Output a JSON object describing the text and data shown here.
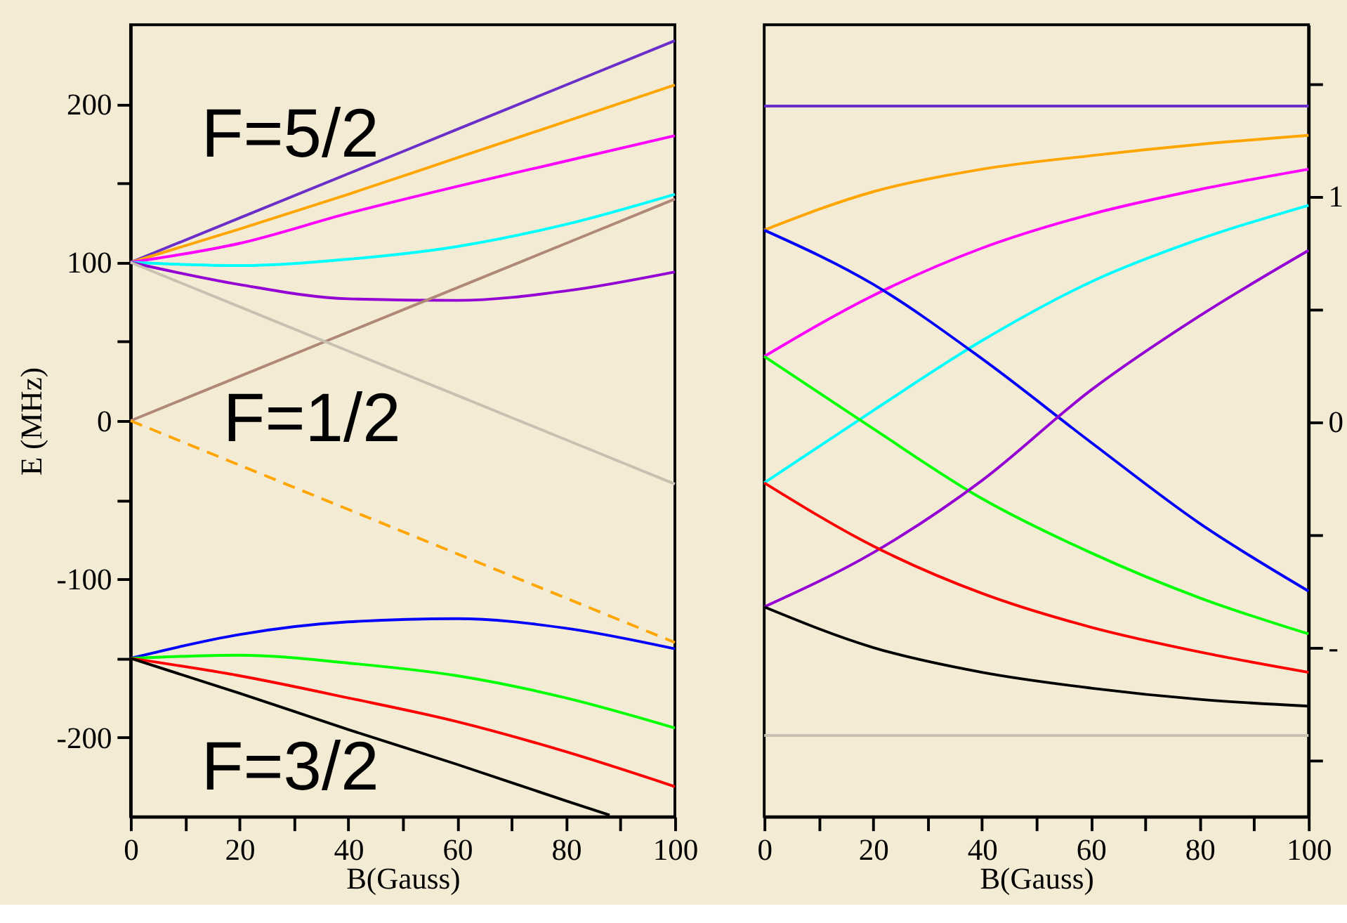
{
  "chart_data": [
    {
      "type": "line",
      "xlabel": "B(Gauss)",
      "ylabel": "E  (MHz)",
      "xlim": [
        0,
        100
      ],
      "ylim": [
        -250,
        250
      ],
      "xticks": [
        0,
        {
          "value": 10,
          "label": null
        },
        20,
        {
          "value": 30,
          "label": null
        },
        40,
        {
          "value": 50,
          "label": null
        },
        60,
        {
          "value": 70,
          "label": null
        },
        80,
        {
          "value": 90,
          "label": null
        },
        100
      ],
      "yticks": [
        -200,
        {
          "value": -150,
          "label": null
        },
        -100,
        {
          "value": -50,
          "label": null
        },
        0,
        {
          "value": 50,
          "label": null
        },
        100,
        {
          "value": 150,
          "label": null
        },
        200
      ],
      "grid": false,
      "marker": "none",
      "annotations": [
        "F=5/2",
        "F=1/2",
        "F=3/2"
      ],
      "x": [
        0,
        20,
        40,
        60,
        80,
        100
      ],
      "series": [
        {
          "color": "#6a2fc8",
          "values": [
            100,
            128,
            156,
            184,
            212,
            240
          ]
        },
        {
          "color": "#ffa500",
          "values": [
            100,
            121,
            143,
            166,
            189,
            212
          ]
        },
        {
          "color": "#ff00ff",
          "values": [
            100,
            112,
            131,
            148,
            164,
            180
          ]
        },
        {
          "color": "#00ffff",
          "values": [
            100,
            98,
            102,
            110,
            124,
            143
          ]
        },
        {
          "color": "#9400d3",
          "values": [
            100,
            86,
            77,
            76,
            82,
            94
          ]
        },
        {
          "color": "#b08878",
          "values": [
            0,
            28,
            56,
            84,
            112,
            140
          ]
        },
        {
          "color": "#c8c0b0",
          "values": [
            100,
            72,
            44,
            16,
            -12,
            -40
          ]
        },
        {
          "color": "#ffa500",
          "line_style": "dashed",
          "values": [
            0,
            -28,
            -56,
            -84,
            -112,
            -140
          ]
        },
        {
          "color": "#0000ff",
          "values": [
            -150,
            -135,
            -127,
            -125,
            -131,
            -144
          ]
        },
        {
          "color": "#00ff00",
          "values": [
            -150,
            -148,
            -153,
            -161,
            -175,
            -194
          ]
        },
        {
          "color": "#ff0000",
          "values": [
            -150,
            -161,
            -175,
            -190,
            -209,
            -231
          ]
        },
        {
          "color": "#000000",
          "x": [
            0,
            20,
            40,
            60,
            80,
            88
          ],
          "values": [
            -150,
            -172,
            -195,
            -217,
            -240,
            -249
          ]
        }
      ]
    },
    {
      "type": "line",
      "xlabel": "B(Gauss)",
      "xlim": [
        0,
        100
      ],
      "ylim": [
        -1.75,
        1.76
      ],
      "xticks": [
        0,
        {
          "value": 10,
          "label": null
        },
        20,
        {
          "value": 30,
          "label": null
        },
        40,
        {
          "value": 50,
          "label": null
        },
        60,
        {
          "value": 70,
          "label": null
        },
        80,
        {
          "value": 90,
          "label": null
        },
        100
      ],
      "yticks": [
        {
          "value": -1.5,
          "label": null
        },
        {
          "value": -1,
          "label": "-"
        },
        {
          "value": -0.5,
          "label": null
        },
        0,
        {
          "value": 0.5,
          "label": null
        },
        1,
        {
          "value": 1.5,
          "label": null
        }
      ],
      "grid": false,
      "marker": "none",
      "x": [
        0,
        20,
        40,
        60,
        80,
        100
      ],
      "series": [
        {
          "color": "#6a2fc8",
          "values": [
            1.4,
            1.4,
            1.4,
            1.4,
            1.4,
            1.4
          ]
        },
        {
          "color": "#ffa500",
          "values": [
            0.85,
            1.02,
            1.12,
            1.18,
            1.23,
            1.27
          ]
        },
        {
          "color": "#ff00ff",
          "values": [
            0.29,
            0.56,
            0.77,
            0.92,
            1.03,
            1.12
          ]
        },
        {
          "color": "#00ffff",
          "values": [
            -0.27,
            0.05,
            0.36,
            0.62,
            0.81,
            0.96
          ]
        },
        {
          "color": "#0000ff",
          "values": [
            0.85,
            0.61,
            0.28,
            -0.09,
            -0.45,
            -0.75
          ]
        },
        {
          "color": "#00ff00",
          "values": [
            0.29,
            -0.03,
            -0.34,
            -0.58,
            -0.78,
            -0.94
          ]
        },
        {
          "color": "#9400d3",
          "values": [
            -0.82,
            -0.58,
            -0.26,
            0.14,
            0.47,
            0.76
          ]
        },
        {
          "color": "#ff0000",
          "values": [
            -0.27,
            -0.55,
            -0.76,
            -0.91,
            -1.02,
            -1.11
          ]
        },
        {
          "color": "#000000",
          "values": [
            -0.82,
            -1.0,
            -1.11,
            -1.18,
            -1.23,
            -1.26
          ]
        },
        {
          "color": "#c8c0b0",
          "values": [
            -1.39,
            -1.39,
            -1.39,
            -1.39,
            -1.39,
            -1.39
          ]
        }
      ]
    }
  ]
}
